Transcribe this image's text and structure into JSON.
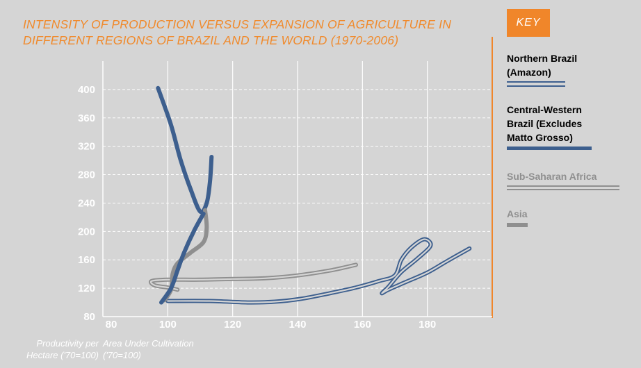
{
  "title_line1": "INTENSITY OF PRODUCTION VERSUS EXPANSION OF AGRICULTURE IN",
  "title_line2": "DIFFERENT REGIONS OF BRAZIL AND THE WORLD (1970-2006)",
  "key_label": "KEY",
  "legend": [
    {
      "line1": "Northern Brazil",
      "line2": "(Amazon)",
      "line3": "",
      "color": "#3d5f8e",
      "style": "double"
    },
    {
      "line1": "Central-Western",
      "line2": "Brazil (Excludes",
      "line3": "Matto Grosso)",
      "color": "#3d5f8e",
      "style": "thick"
    },
    {
      "line1": "Sub-Saharan Africa",
      "line2": "",
      "line3": "",
      "color": "#8f8f8f",
      "style": "double"
    },
    {
      "line1": "Asia",
      "line2": "",
      "line3": "",
      "color": "#8f8f8f",
      "style": "thick"
    }
  ],
  "y_caption_line1": "Productivity per",
  "y_caption_line2": "Hectare ('70=100)",
  "x_caption_line1": "Area Under Cultivation",
  "x_caption_line2": "('70=100)",
  "chart_data": {
    "type": "line",
    "title": "INTENSITY OF PRODUCTION VERSUS EXPANSION OF AGRICULTURE IN DIFFERENT REGIONS OF BRAZIL AND THE WORLD (1970-2006)",
    "xlabel": "Area Under Cultivation ('70=100)",
    "ylabel": "Productivity per Hectare ('70=100)",
    "xlim": [
      80,
      200
    ],
    "ylim": [
      80,
      440
    ],
    "x_ticks": [
      80,
      100,
      120,
      140,
      160,
      180
    ],
    "y_ticks": [
      80,
      120,
      160,
      200,
      240,
      280,
      320,
      360,
      400
    ],
    "grid": true,
    "series": [
      {
        "name": "Northern Brazil (Amazon)",
        "color": "#3d5f8e",
        "style": "double",
        "points": [
          [
            100,
            102
          ],
          [
            113,
            102
          ],
          [
            125,
            100
          ],
          [
            133,
            101
          ],
          [
            141,
            105
          ],
          [
            150,
            113
          ],
          [
            158,
            121
          ],
          [
            165,
            130
          ],
          [
            170,
            138
          ],
          [
            172,
            160
          ],
          [
            175,
            177
          ],
          [
            179,
            189
          ],
          [
            181,
            180
          ],
          [
            177,
            162
          ],
          [
            172,
            143
          ],
          [
            168,
            122
          ],
          [
            166,
            113
          ],
          [
            168,
            118
          ],
          [
            173,
            128
          ],
          [
            180,
            142
          ],
          [
            186,
            158
          ],
          [
            193,
            176
          ]
        ]
      },
      {
        "name": "Central-Western Brazil (Excludes Matto Grosso)",
        "color": "#3d5f8e",
        "style": "thick",
        "points": [
          [
            97,
            402
          ],
          [
            101,
            350
          ],
          [
            104,
            300
          ],
          [
            107,
            260
          ],
          [
            110,
            228
          ],
          [
            112,
            240
          ],
          [
            113,
            270
          ],
          [
            113.5,
            305
          ]
        ]
      },
      {
        "name": "Sub-Saharan Africa",
        "color": "#8f8f8f",
        "style": "double",
        "points": [
          [
            158,
            153
          ],
          [
            150,
            145
          ],
          [
            140,
            138
          ],
          [
            130,
            134
          ],
          [
            120,
            133
          ],
          [
            110,
            132
          ],
          [
            100,
            132
          ],
          [
            95,
            130
          ],
          [
            96,
            124
          ],
          [
            100,
            121
          ],
          [
            103,
            118
          ]
        ]
      },
      {
        "name": "Asia",
        "color": "#8f8f8f",
        "style": "thick",
        "points": [
          [
            99,
            103
          ],
          [
            101,
            118
          ],
          [
            101.5,
            140
          ],
          [
            103,
            155
          ],
          [
            107,
            170
          ],
          [
            111,
            185
          ],
          [
            112,
            205
          ],
          [
            111.5,
            230
          ]
        ]
      },
      {
        "name": "",
        "color": "#3d5f8e",
        "style": "thick",
        "points": [
          [
            98,
            100
          ],
          [
            101,
            120
          ],
          [
            103,
            145
          ],
          [
            105,
            170
          ],
          [
            108,
            200
          ],
          [
            111,
            225
          ]
        ]
      }
    ]
  }
}
